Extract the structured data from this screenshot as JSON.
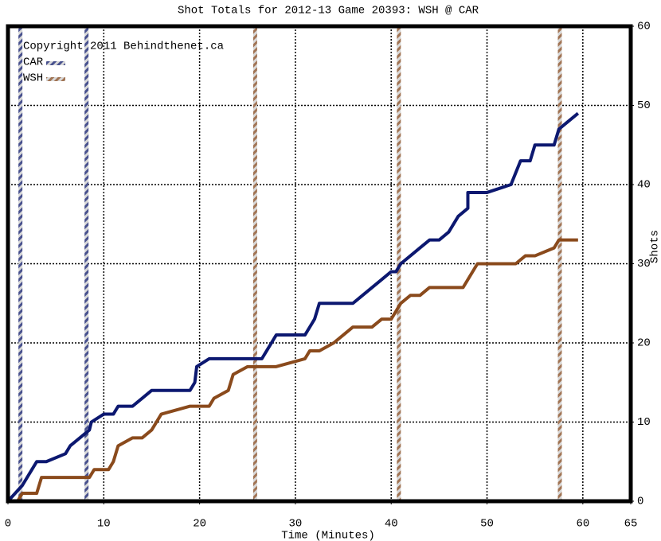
{
  "chart_data": {
    "type": "line",
    "title": "Shot Totals for 2012-13 Game 20393: WSH @ CAR",
    "copyright": "Copyright 2011 Behindthenet.ca",
    "xlabel": "Time (Minutes)",
    "ylabel": "Shots",
    "xlim": [
      0,
      65
    ],
    "ylim": [
      0,
      60
    ],
    "xticks": [
      0,
      10,
      20,
      30,
      40,
      50,
      60,
      65
    ],
    "yticks": [
      0,
      10,
      20,
      30,
      40,
      50,
      60
    ],
    "grid": true,
    "legend": "upper left",
    "series": [
      {
        "name": "CAR",
        "color": "#0c1870",
        "x": [
          0,
          1.5,
          2,
          2.5,
          3,
          4,
          6,
          6.5,
          7.5,
          8.5,
          8.7,
          10,
          11,
          11.5,
          13,
          14,
          15,
          19,
          19.5,
          19.7,
          21,
          26.5,
          27,
          27.5,
          28,
          31,
          31.5,
          32,
          32.5,
          36,
          37,
          39,
          40,
          40.5,
          41,
          42,
          43,
          44,
          45,
          46,
          47,
          48,
          48,
          50,
          52.5,
          53.5,
          54.5,
          55,
          57,
          57.5,
          59.5
        ],
        "values": [
          0,
          2,
          3,
          4,
          5,
          5,
          6,
          7,
          8,
          9,
          10,
          11,
          11,
          12,
          12,
          13,
          14,
          14,
          15,
          17,
          18,
          18,
          19,
          20,
          21,
          21,
          22,
          23,
          25,
          25,
          26,
          28,
          29,
          29,
          30,
          31,
          32,
          33,
          33,
          34,
          36,
          37,
          39,
          39,
          40,
          43,
          43,
          45,
          45,
          47,
          49
        ],
        "goals": [
          1.3,
          8.2
        ]
      },
      {
        "name": "WSH",
        "color": "#8a4a1c",
        "x": [
          0,
          1,
          1.5,
          3,
          3.5,
          8.5,
          9,
          10.5,
          11,
          11.5,
          13,
          14,
          15,
          16,
          19,
          21,
          21.5,
          23,
          23.5,
          25,
          28,
          31,
          31.5,
          32.5,
          34,
          35,
          36,
          38,
          39,
          40,
          40.5,
          41,
          42,
          43,
          44,
          47.5,
          49,
          53,
          54,
          55,
          57,
          57.5,
          59.5
        ],
        "values": [
          0,
          0,
          1,
          1,
          3,
          3,
          4,
          4,
          5,
          7,
          8,
          8,
          9,
          11,
          12,
          12,
          13,
          14,
          16,
          17,
          17,
          18,
          19,
          19,
          20,
          21,
          22,
          22,
          23,
          23,
          24,
          25,
          26,
          26,
          27,
          27,
          30,
          30,
          31,
          31,
          32,
          33,
          33
        ],
        "goals": [
          25.8,
          40.8,
          57.6
        ]
      }
    ]
  }
}
